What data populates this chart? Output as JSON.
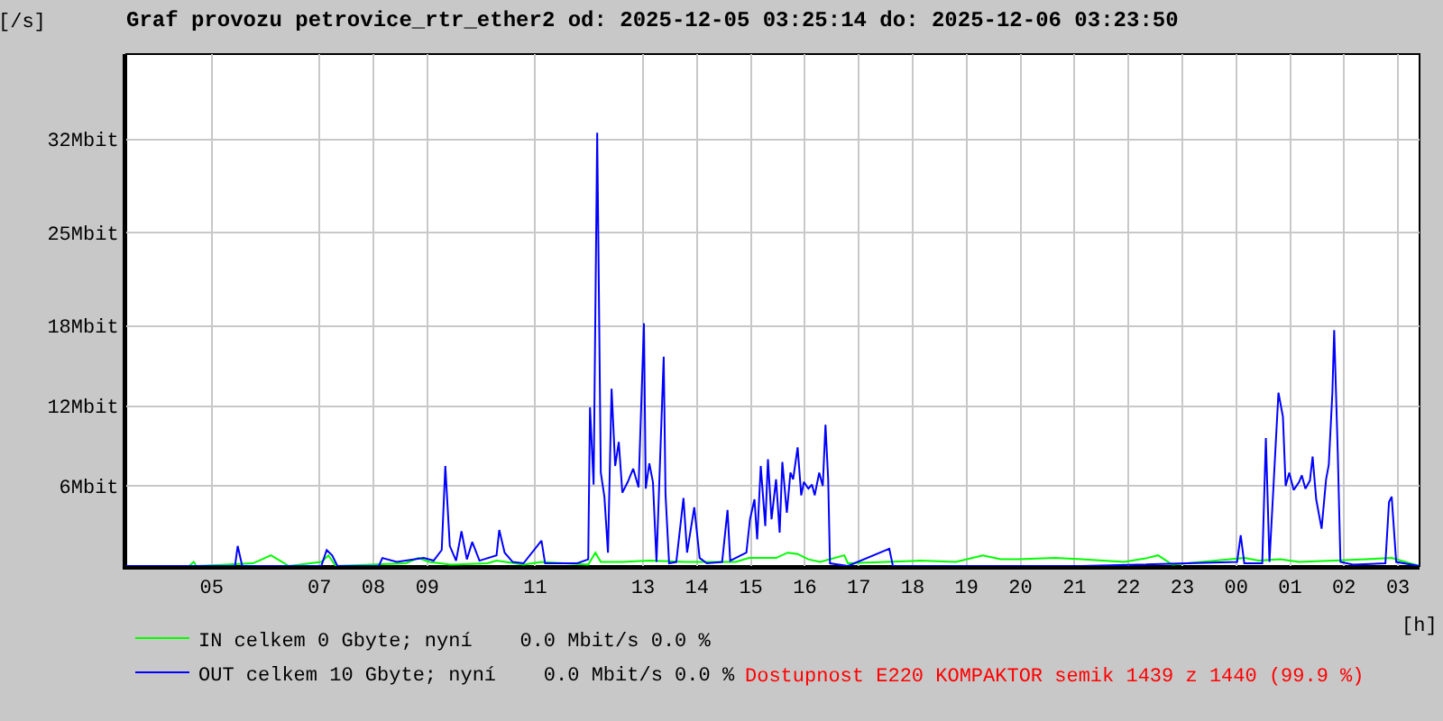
{
  "chart_data": {
    "type": "line",
    "title": "Graf provozu petrovice_rtr_ether2 od: 2025-12-05 03:25:14 do: 2025-12-06 03:23:50",
    "xlabel": "[h]",
    "ylabel": "[/s]",
    "xlim": [
      "2025-12-05T03:25",
      "2025-12-06T03:24"
    ],
    "xticks": [
      {
        "value": "2025-12-05T05:00",
        "label": "05"
      },
      {
        "value": "2025-12-05T07:00",
        "label": "07"
      },
      {
        "value": "2025-12-05T08:00",
        "label": "08"
      },
      {
        "value": "2025-12-05T09:00",
        "label": "09"
      },
      {
        "value": "2025-12-05T11:00",
        "label": "11"
      },
      {
        "value": "2025-12-05T13:00",
        "label": "13"
      },
      {
        "value": "2025-12-05T14:00",
        "label": "14"
      },
      {
        "value": "2025-12-05T15:00",
        "label": "15"
      },
      {
        "value": "2025-12-05T16:00",
        "label": "16"
      },
      {
        "value": "2025-12-05T17:00",
        "label": "17"
      },
      {
        "value": "2025-12-05T18:00",
        "label": "18"
      },
      {
        "value": "2025-12-05T19:00",
        "label": "19"
      },
      {
        "value": "2025-12-05T20:00",
        "label": "20"
      },
      {
        "value": "2025-12-05T21:00",
        "label": "21"
      },
      {
        "value": "2025-12-05T22:00",
        "label": "22"
      },
      {
        "value": "2025-12-05T23:00",
        "label": "23"
      },
      {
        "value": "2025-12-06T00:00",
        "label": "00"
      },
      {
        "value": "2025-12-06T01:00",
        "label": "01"
      },
      {
        "value": "2025-12-06T02:00",
        "label": "02"
      },
      {
        "value": "2025-12-06T03:00",
        "label": "03"
      }
    ],
    "ylim": [
      0,
      38.4
    ],
    "yticks": [
      {
        "value": 6,
        "label": "6Mbit"
      },
      {
        "value": 12,
        "label": "12Mbit"
      },
      {
        "value": 18,
        "label": "18Mbit"
      },
      {
        "value": 25,
        "label": "25Mbit"
      },
      {
        "value": 32,
        "label": "32Mbit"
      }
    ],
    "grid": true,
    "legend": "bottom",
    "marker": "none",
    "series": [
      {
        "name": "IN celkem 0 Gbyte; nyní    0.0 Mbit/s 0.0 %",
        "color": "#00ff00",
        "x": [
          "2025-12-05T03:25",
          "2025-12-05T04:35",
          "2025-12-05T04:40",
          "2025-12-05T04:43",
          "2025-12-05T05:46",
          "2025-12-05T05:56",
          "2025-12-05T06:06",
          "2025-12-05T06:16",
          "2025-12-05T06:26",
          "2025-12-05T07:02",
          "2025-12-05T07:10",
          "2025-12-05T07:18",
          "2025-12-05T08:36",
          "2025-12-05T08:50",
          "2025-12-05T09:02",
          "2025-12-05T09:26",
          "2025-12-05T10:07",
          "2025-12-05T10:17",
          "2025-12-05T10:47",
          "2025-12-05T11:07",
          "2025-12-05T11:59",
          "2025-12-05T12:07",
          "2025-12-05T12:13",
          "2025-12-05T12:37",
          "2025-12-05T13:07",
          "2025-12-05T13:47",
          "2025-12-05T14:17",
          "2025-12-05T14:43",
          "2025-12-05T14:58",
          "2025-12-05T15:28",
          "2025-12-05T15:41",
          "2025-12-05T15:52",
          "2025-12-05T16:04",
          "2025-12-05T16:17",
          "2025-12-05T16:44",
          "2025-12-05T16:48",
          "2025-12-05T18:08",
          "2025-12-05T18:48",
          "2025-12-05T19:18",
          "2025-12-05T19:38",
          "2025-12-05T19:58",
          "2025-12-05T20:38",
          "2025-12-05T21:08",
          "2025-12-05T21:55",
          "2025-12-05T22:21",
          "2025-12-05T22:33",
          "2025-12-05T22:49",
          "2025-12-06T00:09",
          "2025-12-06T00:25",
          "2025-12-06T00:49",
          "2025-12-06T01:10",
          "2025-12-06T01:49",
          "2025-12-06T02:53",
          "2025-12-06T03:24"
        ],
        "values": [
          0,
          0,
          0.3,
          0,
          0.2,
          0.5,
          0.8,
          0.4,
          0,
          0.3,
          0.8,
          0,
          0.2,
          0.6,
          0.3,
          0.1,
          0.2,
          0.4,
          0.1,
          0.3,
          0.1,
          1.0,
          0.3,
          0.3,
          0.4,
          0.3,
          0.3,
          0.3,
          0.6,
          0.6,
          1.0,
          0.9,
          0.5,
          0.3,
          0.8,
          0.2,
          0.4,
          0.3,
          0.8,
          0.5,
          0.5,
          0.6,
          0.5,
          0.3,
          0.6,
          0.8,
          0.1,
          0.6,
          0.4,
          0.5,
          0.3,
          0.4,
          0.6,
          0
        ]
      },
      {
        "name": "OUT celkem 10 Gbyte; nyní    0.0 Mbit/s 0.0 %",
        "color": "#0000ff",
        "x": [
          "2025-12-05T03:25",
          "2025-12-05T05:26",
          "2025-12-05T05:29",
          "2025-12-05T05:34",
          "2025-12-05T07:02",
          "2025-12-05T07:08",
          "2025-12-05T07:14",
          "2025-12-05T07:20",
          "2025-12-05T08:06",
          "2025-12-05T08:10",
          "2025-12-05T08:26",
          "2025-12-05T08:56",
          "2025-12-05T09:07",
          "2025-12-05T09:16",
          "2025-12-05T09:20",
          "2025-12-05T09:25",
          "2025-12-05T09:32",
          "2025-12-05T09:38",
          "2025-12-05T09:44",
          "2025-12-05T09:50",
          "2025-12-05T09:58",
          "2025-12-05T10:17",
          "2025-12-05T10:20",
          "2025-12-05T10:26",
          "2025-12-05T10:35",
          "2025-12-05T10:47",
          "2025-12-05T11:07",
          "2025-12-05T11:11",
          "2025-12-05T11:47",
          "2025-12-05T11:59",
          "2025-12-05T12:01",
          "2025-12-05T12:05",
          "2025-12-05T12:09",
          "2025-12-05T12:13",
          "2025-12-05T12:17",
          "2025-12-05T12:21",
          "2025-12-05T12:25",
          "2025-12-05T12:29",
          "2025-12-05T12:33",
          "2025-12-05T12:37",
          "2025-12-05T12:43",
          "2025-12-05T12:49",
          "2025-12-05T12:55",
          "2025-12-05T13:01",
          "2025-12-05T13:03",
          "2025-12-05T13:07",
          "2025-12-05T13:11",
          "2025-12-05T13:15",
          "2025-12-05T13:23",
          "2025-12-05T13:25",
          "2025-12-05T13:29",
          "2025-12-05T13:37",
          "2025-12-05T13:45",
          "2025-12-05T13:49",
          "2025-12-05T13:57",
          "2025-12-05T14:03",
          "2025-12-05T14:11",
          "2025-12-05T14:28",
          "2025-12-05T14:34",
          "2025-12-05T14:37",
          "2025-12-05T14:55",
          "2025-12-05T14:59",
          "2025-12-05T15:04",
          "2025-12-05T15:07",
          "2025-12-05T15:11",
          "2025-12-05T15:16",
          "2025-12-05T15:19",
          "2025-12-05T15:23",
          "2025-12-05T15:28",
          "2025-12-05T15:32",
          "2025-12-05T15:35",
          "2025-12-05T15:40",
          "2025-12-05T15:44",
          "2025-12-05T15:47",
          "2025-12-05T15:52",
          "2025-12-05T15:56",
          "2025-12-05T15:59",
          "2025-12-05T16:04",
          "2025-12-05T16:08",
          "2025-12-05T16:11",
          "2025-12-05T16:16",
          "2025-12-05T16:20",
          "2025-12-05T16:23",
          "2025-12-05T16:26",
          "2025-12-05T16:28",
          "2025-12-05T16:48",
          "2025-12-05T17:34",
          "2025-12-05T17:38",
          "2025-12-05T21:08",
          "2025-12-06T00:01",
          "2025-12-06T00:05",
          "2025-12-06T00:09",
          "2025-12-06T00:29",
          "2025-12-06T00:33",
          "2025-12-06T00:37",
          "2025-12-06T00:47",
          "2025-12-06T00:52",
          "2025-12-06T00:55",
          "2025-12-06T00:59",
          "2025-12-06T01:04",
          "2025-12-06T01:10",
          "2025-12-06T01:13",
          "2025-12-06T01:17",
          "2025-12-06T01:22",
          "2025-12-06T01:25",
          "2025-12-06T01:29",
          "2025-12-06T01:35",
          "2025-12-06T01:40",
          "2025-12-06T01:43",
          "2025-12-06T01:47",
          "2025-12-06T01:49",
          "2025-12-06T01:53",
          "2025-12-06T01:56",
          "2025-12-06T02:10",
          "2025-12-06T02:46",
          "2025-12-06T02:50",
          "2025-12-06T02:53",
          "2025-12-06T02:58",
          "2025-12-06T03:24"
        ],
        "values": [
          0,
          0,
          1.5,
          0,
          0,
          1.2,
          0.8,
          0,
          0,
          0.6,
          0.3,
          0.6,
          0.4,
          1.2,
          7.5,
          1.5,
          0.4,
          2.6,
          0.5,
          1.8,
          0.4,
          0.8,
          2.7,
          1.0,
          0.3,
          0.2,
          1.9,
          0.2,
          0.2,
          0.5,
          11.9,
          6.1,
          32.5,
          7.0,
          5.2,
          1.0,
          13.3,
          7.5,
          9.3,
          5.5,
          6.3,
          7.3,
          5.9,
          18.2,
          5.8,
          7.7,
          6.3,
          0.3,
          15.7,
          5.4,
          0.2,
          0.3,
          5.1,
          1.0,
          4.4,
          0.6,
          0.2,
          0.3,
          4.2,
          0.4,
          1.0,
          3.5,
          5.0,
          2.0,
          7.5,
          3.0,
          8.0,
          3.5,
          6.5,
          2.5,
          7.8,
          4.0,
          7.0,
          6.5,
          8.9,
          5.3,
          6.3,
          5.8,
          6.1,
          5.3,
          7.0,
          6.0,
          10.6,
          6.5,
          0.2,
          0,
          1.3,
          0,
          0,
          0.3,
          2.3,
          0.2,
          0.2,
          9.6,
          0.3,
          13.0,
          11.2,
          6.0,
          7.0,
          5.7,
          6.3,
          6.8,
          5.8,
          6.4,
          8.2,
          5.0,
          2.8,
          6.5,
          7.6,
          13.0,
          17.7,
          8.5,
          0.3,
          0.1,
          0.2,
          4.8,
          5.2,
          0.3,
          0
        ]
      }
    ],
    "annotations": [
      "Dostupnost E220 KOMPAKTOR semik 1439 z 1440 (99.9 %)"
    ]
  }
}
